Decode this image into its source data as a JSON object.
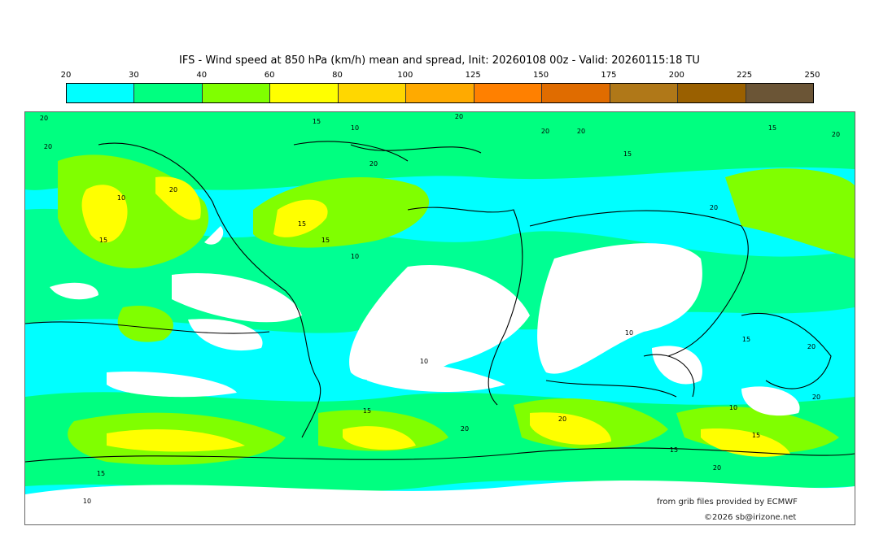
{
  "title": "IFS - Wind speed at 850 hPa (km/h) mean and spread, Init: 20260108 00z - Valid: 20260115:18 TU",
  "colorbar": {
    "ticks": [
      "20",
      "30",
      "40",
      "60",
      "80",
      "100",
      "125",
      "150",
      "175",
      "200",
      "225",
      "250"
    ],
    "colors": [
      "#00ffff",
      "#00ff80",
      "#80ff00",
      "#ffff00",
      "#ffd700",
      "#ffaa00",
      "#ff8000",
      "#e06c00",
      "#b07818",
      "#9a6000",
      "#6b5536"
    ]
  },
  "map": {
    "contour_labels": [
      "20",
      "15",
      "10",
      "20",
      "20",
      "20",
      "15",
      "15",
      "20",
      "20",
      "20",
      "10",
      "15",
      "20",
      "15",
      "15",
      "20",
      "10",
      "10",
      "10",
      "10",
      "15",
      "20",
      "20",
      "15",
      "20",
      "20",
      "15",
      "15",
      "20",
      "10",
      "15"
    ]
  },
  "credits": {
    "source": "from grib files provided by ECMWF",
    "copyright": "©2026 sb@irizone.net"
  }
}
